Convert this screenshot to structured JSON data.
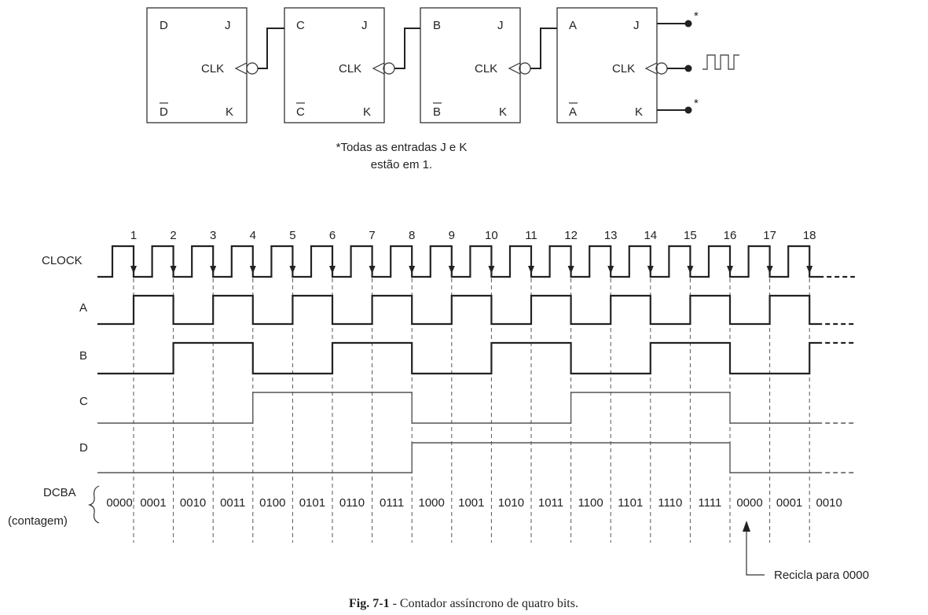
{
  "flipflops": [
    {
      "q": "D",
      "qbar": "D",
      "j": "J",
      "k": "K",
      "clk": "CLK"
    },
    {
      "q": "C",
      "qbar": "C",
      "j": "J",
      "k": "K",
      "clk": "CLK"
    },
    {
      "q": "B",
      "qbar": "B",
      "j": "J",
      "k": "K",
      "clk": "CLK"
    },
    {
      "q": "A",
      "qbar": "A",
      "j": "J",
      "k": "K",
      "clk": "CLK"
    }
  ],
  "asterisk": "*",
  "note_line1": "*Todas as entradas J e K",
  "note_line2": "estão em 1.",
  "timing": {
    "clock_label": "CLOCK",
    "pulse_numbers": [
      "1",
      "2",
      "3",
      "4",
      "5",
      "6",
      "7",
      "8",
      "9",
      "10",
      "11",
      "12",
      "13",
      "14",
      "15",
      "16",
      "17",
      "18"
    ],
    "signals": [
      {
        "name": "A",
        "levels": [
          0,
          1,
          0,
          1,
          0,
          1,
          0,
          1,
          0,
          1,
          0,
          1,
          0,
          1,
          0,
          1,
          0,
          1,
          0
        ]
      },
      {
        "name": "B",
        "levels": [
          0,
          0,
          1,
          1,
          0,
          0,
          1,
          1,
          0,
          0,
          1,
          1,
          0,
          0,
          1,
          1,
          0,
          0,
          1
        ]
      },
      {
        "name": "C",
        "levels": [
          0,
          0,
          0,
          0,
          1,
          1,
          1,
          1,
          0,
          0,
          0,
          0,
          1,
          1,
          1,
          1,
          0,
          0,
          0
        ]
      },
      {
        "name": "D",
        "levels": [
          0,
          0,
          0,
          0,
          0,
          0,
          0,
          0,
          1,
          1,
          1,
          1,
          1,
          1,
          1,
          1,
          0,
          0,
          0
        ]
      }
    ],
    "count_label": "DCBA",
    "count_sub": "(contagem)",
    "counts": [
      "0000",
      "0001",
      "0010",
      "0011",
      "0100",
      "0101",
      "0110",
      "0111",
      "1000",
      "1001",
      "1010",
      "1011",
      "1100",
      "1101",
      "1110",
      "1111",
      "0000",
      "0001",
      "0010"
    ],
    "recycle_note": "Recicla para 0000"
  },
  "caption": {
    "fig": "Fig. 7-1",
    "text": " - Contador assíncrono de quatro bits."
  }
}
